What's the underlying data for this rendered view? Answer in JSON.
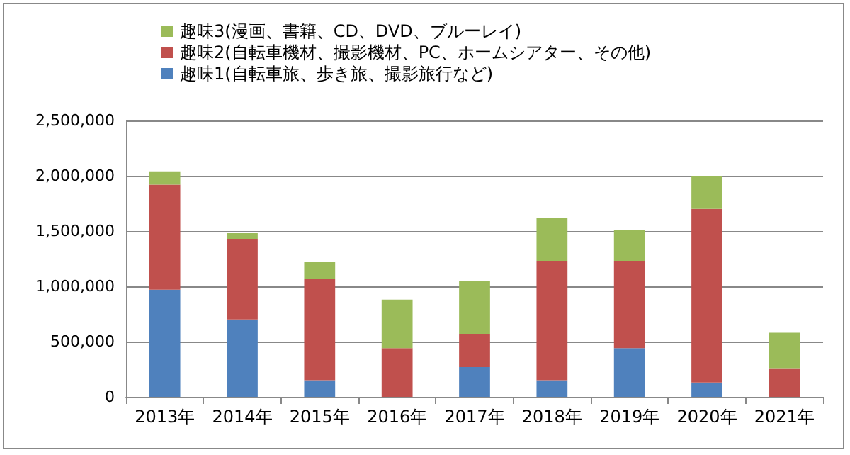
{
  "chart_data": {
    "type": "bar",
    "stacked": true,
    "categories": [
      "2013年",
      "2014年",
      "2015年",
      "2016年",
      "2017年",
      "2018年",
      "2019年",
      "2020年",
      "2021年"
    ],
    "series": [
      {
        "name": "趣味1(自転車旅、歩き旅、撮影旅行など)",
        "color": "#4f81bd",
        "values": [
          970000,
          700000,
          150000,
          0,
          270000,
          150000,
          440000,
          130000,
          0
        ]
      },
      {
        "name": "趣味2(自転車機材、撮影機材、PC、ホームシアター、その他)",
        "color": "#c0504d",
        "values": [
          950000,
          730000,
          920000,
          440000,
          300000,
          1080000,
          790000,
          1570000,
          260000
        ]
      },
      {
        "name": "趣味3(漫画、書籍、CD、DVD、ブルーレイ)",
        "color": "#9bbb59",
        "values": [
          120000,
          50000,
          150000,
          440000,
          480000,
          390000,
          280000,
          300000,
          320000
        ]
      }
    ],
    "ylim": [
      0,
      2500000
    ],
    "yticks": [
      0,
      {
        "value": 500000,
        "label": "500,000"
      },
      {
        "value": 1000000,
        "label": "1,000,000"
      },
      {
        "value": 1500000,
        "label": "1,500,000"
      },
      {
        "value": 2000000,
        "label": "2,000,000"
      },
      {
        "value": 2500000,
        "label": "2,500,000"
      }
    ],
    "grid": "y",
    "legend": "top"
  }
}
